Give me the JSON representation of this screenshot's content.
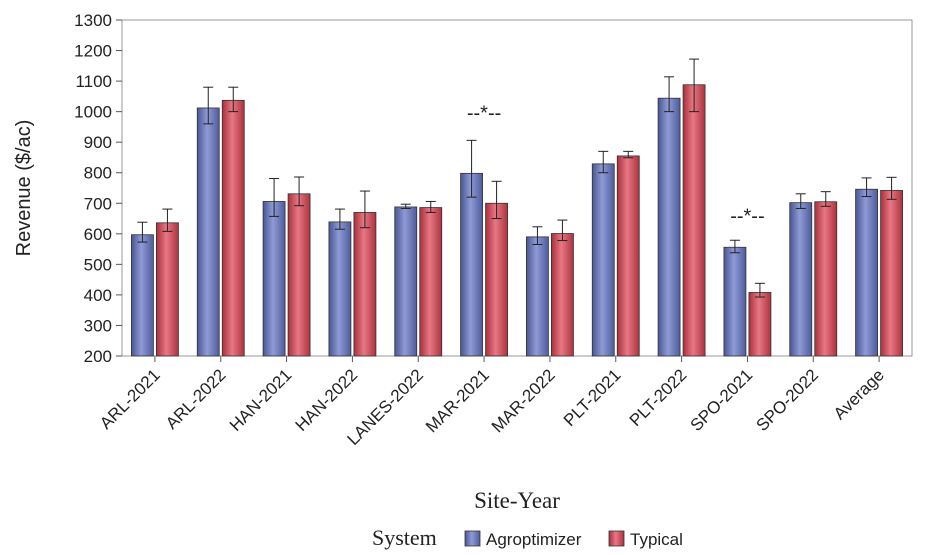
{
  "chart_data": {
    "type": "bar",
    "title": "",
    "xlabel": "Site-Year",
    "ylabel": "Revenue ($/ac)",
    "ylim": [
      200,
      1300
    ],
    "yticks": [
      200,
      300,
      400,
      500,
      600,
      700,
      800,
      900,
      1000,
      1100,
      1200,
      1300
    ],
    "categories": [
      "ARL-2021",
      "ARL-2022",
      "HAN-2021",
      "HAN-2022",
      "LANES-2022",
      "MAR-2021",
      "MAR-2022",
      "PLT-2021",
      "PLT-2022",
      "SPO-2021",
      "SPO-2022",
      "Average"
    ],
    "legend": {
      "title": "System",
      "position": "bottom-center"
    },
    "series": [
      {
        "name": "Agroptimizer",
        "color": "#6f7ec0",
        "values": [
          597,
          1012,
          706,
          639,
          688,
          798,
          590,
          829,
          1044,
          556,
          702,
          746
        ],
        "err_low": [
          573,
          960,
          657,
          615,
          683,
          720,
          565,
          800,
          1000,
          538,
          683,
          722
        ],
        "err_high": [
          638,
          1080,
          781,
          681,
          697,
          906,
          623,
          870,
          1114,
          579,
          731,
          783
        ]
      },
      {
        "name": "Typical",
        "color": "#cf4e5c",
        "values": [
          636,
          1037,
          731,
          670,
          686,
          700,
          601,
          855,
          1088,
          408,
          705,
          742
        ],
        "err_low": [
          608,
          1000,
          692,
          620,
          670,
          650,
          578,
          849,
          1000,
          393,
          690,
          713
        ],
        "err_high": [
          681,
          1080,
          786,
          740,
          706,
          772,
          645,
          870,
          1172,
          438,
          738,
          785
        ]
      }
    ],
    "annotations": [
      {
        "category": "MAR-2021",
        "text": "--*--",
        "y": 975
      },
      {
        "category": "SPO-2021",
        "text": "--*--",
        "y": 637
      }
    ],
    "grid": false
  }
}
